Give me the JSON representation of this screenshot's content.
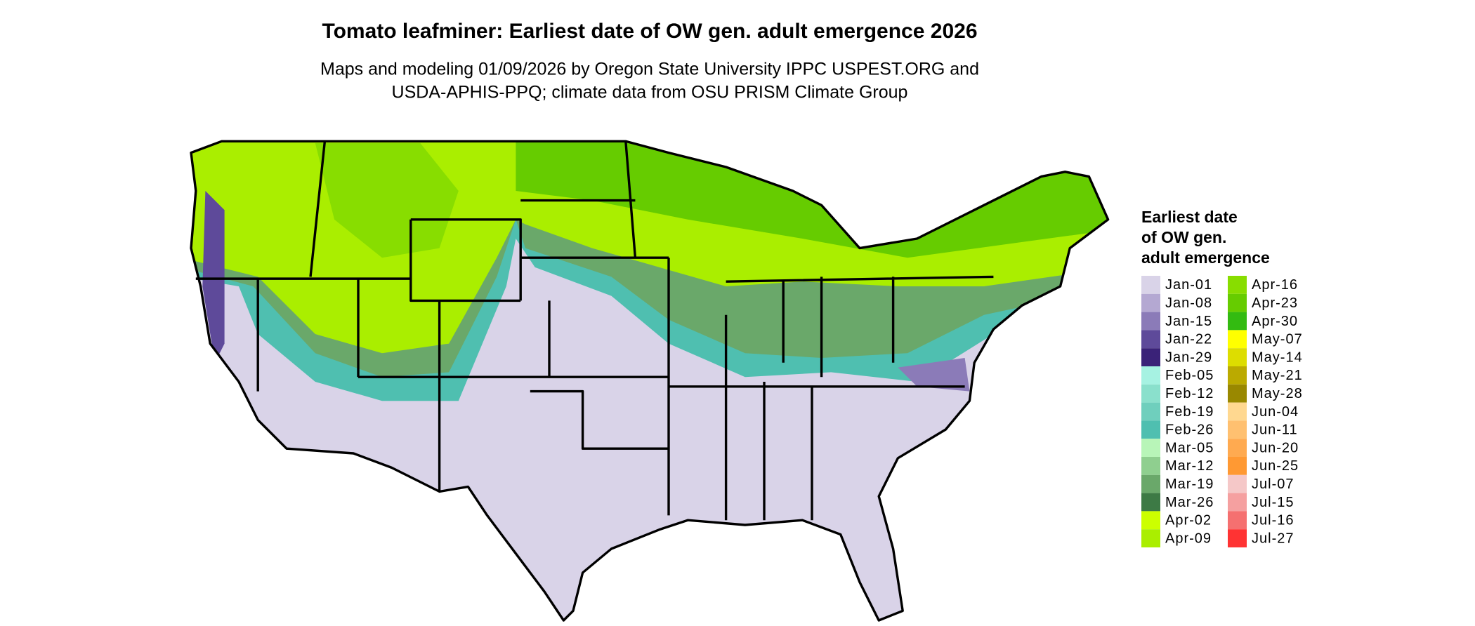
{
  "title": "Tomato leafminer: Earliest date of OW gen. adult emergence 2026",
  "subtitle": [
    "Maps and modeling 01/09/2026 by Oregon State University IPPC USPEST.ORG and",
    "USDA-APHIS-PPQ; climate data from OSU PRISM Climate Group"
  ],
  "legend": {
    "title": [
      "Earliest date",
      "of OW gen.",
      "adult emergence"
    ],
    "items": [
      {
        "label": "Jan-01",
        "color": "#d9d3e8"
      },
      {
        "label": "Jan-08",
        "color": "#b4a8d2"
      },
      {
        "label": "Jan-15",
        "color": "#8b7bb8"
      },
      {
        "label": "Jan-22",
        "color": "#5e4a9a"
      },
      {
        "label": "Jan-29",
        "color": "#3a2278"
      },
      {
        "label": "Feb-05",
        "color": "#a6f2e2"
      },
      {
        "label": "Feb-12",
        "color": "#8ae0cc"
      },
      {
        "label": "Feb-19",
        "color": "#6fcfbd"
      },
      {
        "label": "Feb-26",
        "color": "#4fbfb0"
      },
      {
        "label": "Mar-05",
        "color": "#b8f5b8"
      },
      {
        "label": "Mar-12",
        "color": "#8fcf8f"
      },
      {
        "label": "Mar-19",
        "color": "#6aa86a"
      },
      {
        "label": "Mar-26",
        "color": "#3d7a45"
      },
      {
        "label": "Apr-02",
        "color": "#ccff00"
      },
      {
        "label": "Apr-09",
        "color": "#aaee00"
      },
      {
        "label": "Apr-16",
        "color": "#88dd00"
      },
      {
        "label": "Apr-23",
        "color": "#66cc00"
      },
      {
        "label": "Apr-30",
        "color": "#33bb11"
      },
      {
        "label": "May-07",
        "color": "#ffff00"
      },
      {
        "label": "May-14",
        "color": "#dddd00"
      },
      {
        "label": "May-21",
        "color": "#bbaa00"
      },
      {
        "label": "May-28",
        "color": "#998800"
      },
      {
        "label": "Jun-04",
        "color": "#ffd890"
      },
      {
        "label": "Jun-11",
        "color": "#ffc070"
      },
      {
        "label": "Jun-20",
        "color": "#ffaa50"
      },
      {
        "label": "Jun-25",
        "color": "#ff9933"
      },
      {
        "label": "Jul-07",
        "color": "#f5c8c8"
      },
      {
        "label": "Jul-15",
        "color": "#f5a0a0"
      },
      {
        "label": "Jul-16",
        "color": "#f57070"
      },
      {
        "label": "Jul-27",
        "color": "#ff3333"
      }
    ]
  }
}
